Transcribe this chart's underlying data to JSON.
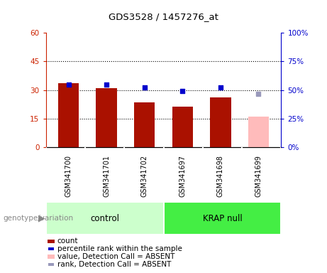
{
  "title": "GDS3528 / 1457276_at",
  "samples": [
    "GSM341700",
    "GSM341701",
    "GSM341702",
    "GSM341697",
    "GSM341698",
    "GSM341699"
  ],
  "count_values": [
    33.5,
    31.0,
    23.5,
    21.5,
    26.0,
    null
  ],
  "count_absent": [
    null,
    null,
    null,
    null,
    null,
    16.0
  ],
  "rank_values": [
    55.0,
    54.5,
    52.0,
    49.5,
    52.5,
    null
  ],
  "rank_absent": [
    null,
    null,
    null,
    null,
    null,
    47.0
  ],
  "groups": [
    {
      "label": "control",
      "start": 0,
      "end": 3,
      "color": "#ccffcc"
    },
    {
      "label": "KRAP null",
      "start": 3,
      "end": 6,
      "color": "#44ee44"
    }
  ],
  "left_axis_color": "#cc2200",
  "right_axis_color": "#0000cc",
  "ylim_left": [
    0,
    60
  ],
  "ylim_right": [
    0,
    100
  ],
  "yticks_left": [
    0,
    15,
    30,
    45,
    60
  ],
  "yticks_right": [
    0,
    25,
    50,
    75,
    100
  ],
  "ytick_labels_left": [
    "0",
    "15",
    "30",
    "45",
    "60"
  ],
  "ytick_labels_right": [
    "0%",
    "25%",
    "50%",
    "75%",
    "100%"
  ],
  "bar_color_present": "#aa1100",
  "bar_color_absent": "#ffbbbb",
  "dot_color_present": "#0000cc",
  "dot_color_absent": "#9999bb",
  "bar_width": 0.55,
  "genotype_label": "genotype/variation",
  "background_color": "#ffffff",
  "plot_bg_color": "#ffffff",
  "sample_bg_color": "#cccccc",
  "legend_items": [
    {
      "label": "count",
      "color": "#aa1100",
      "type": "bar"
    },
    {
      "label": "percentile rank within the sample",
      "color": "#0000cc",
      "type": "dot"
    },
    {
      "label": "value, Detection Call = ABSENT",
      "color": "#ffbbbb",
      "type": "bar"
    },
    {
      "label": "rank, Detection Call = ABSENT",
      "color": "#9999bb",
      "type": "dot"
    }
  ]
}
